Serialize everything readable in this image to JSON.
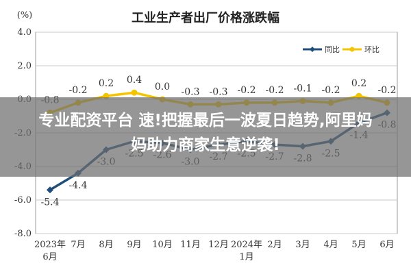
{
  "chart_data": {
    "type": "line",
    "title": "工业生产者出厂价格涨跌幅",
    "ylabel": "(%)",
    "ylim": [
      -8.0,
      4.0
    ],
    "yticks": [
      "4.0",
      "2.0",
      "0.0",
      "-2.0",
      "-4.0",
      "-6.0",
      "-8.0"
    ],
    "categories": [
      "2023年\n6月",
      "7月",
      "8月",
      "9月",
      "10月",
      "11月",
      "12月",
      "2024年\n1月",
      "2月",
      "3月",
      "4月",
      "5月",
      "6月"
    ],
    "grid": true,
    "legend_position": "top-right",
    "series": [
      {
        "name": "同比",
        "color": "#1f4e79",
        "values": [
          -5.4,
          -4.4,
          -3.0,
          -2.5,
          -2.6,
          -3.0,
          -2.7,
          -2.5,
          -2.7,
          -2.8,
          -2.5,
          -1.4,
          -0.8
        ],
        "labels": [
          "-5.4",
          "-4.4",
          "-3.0",
          "-2.5",
          "-2.6",
          "-3.0",
          "-2.7",
          "-2.5",
          "-2.7",
          "-2.8",
          "-2.5",
          "-1.4",
          "-0.8"
        ]
      },
      {
        "name": "环比",
        "color": "#f2c500",
        "values": [
          -0.8,
          -0.2,
          0.2,
          0.4,
          0.0,
          -0.3,
          -0.3,
          -0.2,
          -0.2,
          -0.1,
          -0.2,
          0.2,
          -0.2
        ],
        "labels": [
          "-0.8",
          "-0.2",
          "0.2",
          "0.4",
          "0.0",
          "-0.3",
          "-0.3",
          "-0.2",
          "-0.2",
          "-0.1",
          "-0.2",
          "0.2",
          "-0.2"
        ]
      }
    ]
  },
  "banner": {
    "line1": "专业配资平台 速!把握最后一波夏日趋势,阿里妈",
    "line2": "妈助力商家生意逆袭!"
  }
}
